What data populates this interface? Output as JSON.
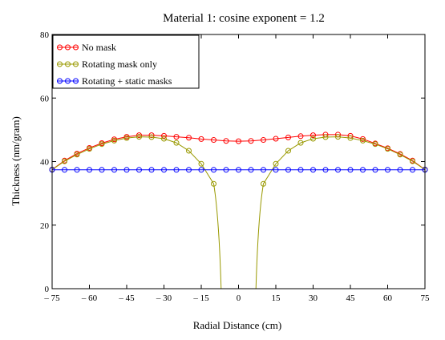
{
  "chart_data": {
    "type": "line",
    "title": "Material 1: cosine exponent = 1.2",
    "xlabel": "Radial Distance (cm)",
    "ylabel": "Thickness (nm/gram)",
    "xlim": [
      -75,
      75
    ],
    "ylim": [
      0,
      80
    ],
    "xticks": [
      -75,
      -60,
      -45,
      -30,
      -15,
      0,
      15,
      30,
      45,
      60,
      75
    ],
    "xtick_labels": [
      "– 75",
      "– 60",
      "– 45",
      "– 30",
      "– 15",
      "0",
      "15",
      "30",
      "45",
      "60",
      "75"
    ],
    "yticks": [
      0,
      20,
      40,
      60,
      80
    ],
    "ytick_labels": [
      "0",
      "20",
      "40",
      "60",
      "80"
    ],
    "grid": false,
    "legend_position": "top-left",
    "x": [
      -75,
      -70,
      -65,
      -60,
      -55,
      -50,
      -45,
      -40,
      -35,
      -30,
      -25,
      -20,
      -15,
      -10,
      -5,
      0,
      5,
      10,
      15,
      20,
      25,
      30,
      35,
      40,
      45,
      50,
      55,
      60,
      65,
      70,
      75
    ],
    "series": [
      {
        "name": "No mask",
        "color": "#ff0000",
        "values": [
          37.5,
          40.3,
          42.5,
          44.3,
          45.8,
          47.0,
          47.8,
          48.3,
          48.3,
          48.1,
          47.8,
          47.5,
          47.1,
          46.8,
          46.5,
          46.4,
          46.5,
          46.8,
          47.2,
          47.6,
          48.0,
          48.3,
          48.5,
          48.5,
          48.1,
          47.1,
          45.7,
          44.2,
          42.4,
          40.3,
          37.5
        ]
      },
      {
        "name": "Rotating mask only",
        "color": "#999900",
        "values": [
          37.5,
          40.1,
          42.2,
          44.0,
          45.5,
          46.6,
          47.4,
          47.8,
          47.7,
          47.2,
          45.9,
          43.4,
          39.3,
          33.0,
          null,
          null,
          null,
          33.0,
          39.3,
          43.4,
          45.9,
          47.2,
          47.7,
          47.8,
          47.4,
          46.6,
          45.5,
          44.0,
          42.2,
          40.1,
          37.5
        ],
        "curve_bottom": {
          "x_left": -7,
          "x_right": 7,
          "y": 0
        }
      },
      {
        "name": "Rotating + static masks",
        "color": "#0000ff",
        "values": [
          37.4,
          37.4,
          37.4,
          37.4,
          37.4,
          37.4,
          37.4,
          37.4,
          37.4,
          37.4,
          37.4,
          37.4,
          37.4,
          37.4,
          37.4,
          37.4,
          37.4,
          37.4,
          37.4,
          37.4,
          37.4,
          37.4,
          37.4,
          37.4,
          37.4,
          37.4,
          37.4,
          37.4,
          37.4,
          37.4,
          37.4
        ]
      }
    ]
  }
}
